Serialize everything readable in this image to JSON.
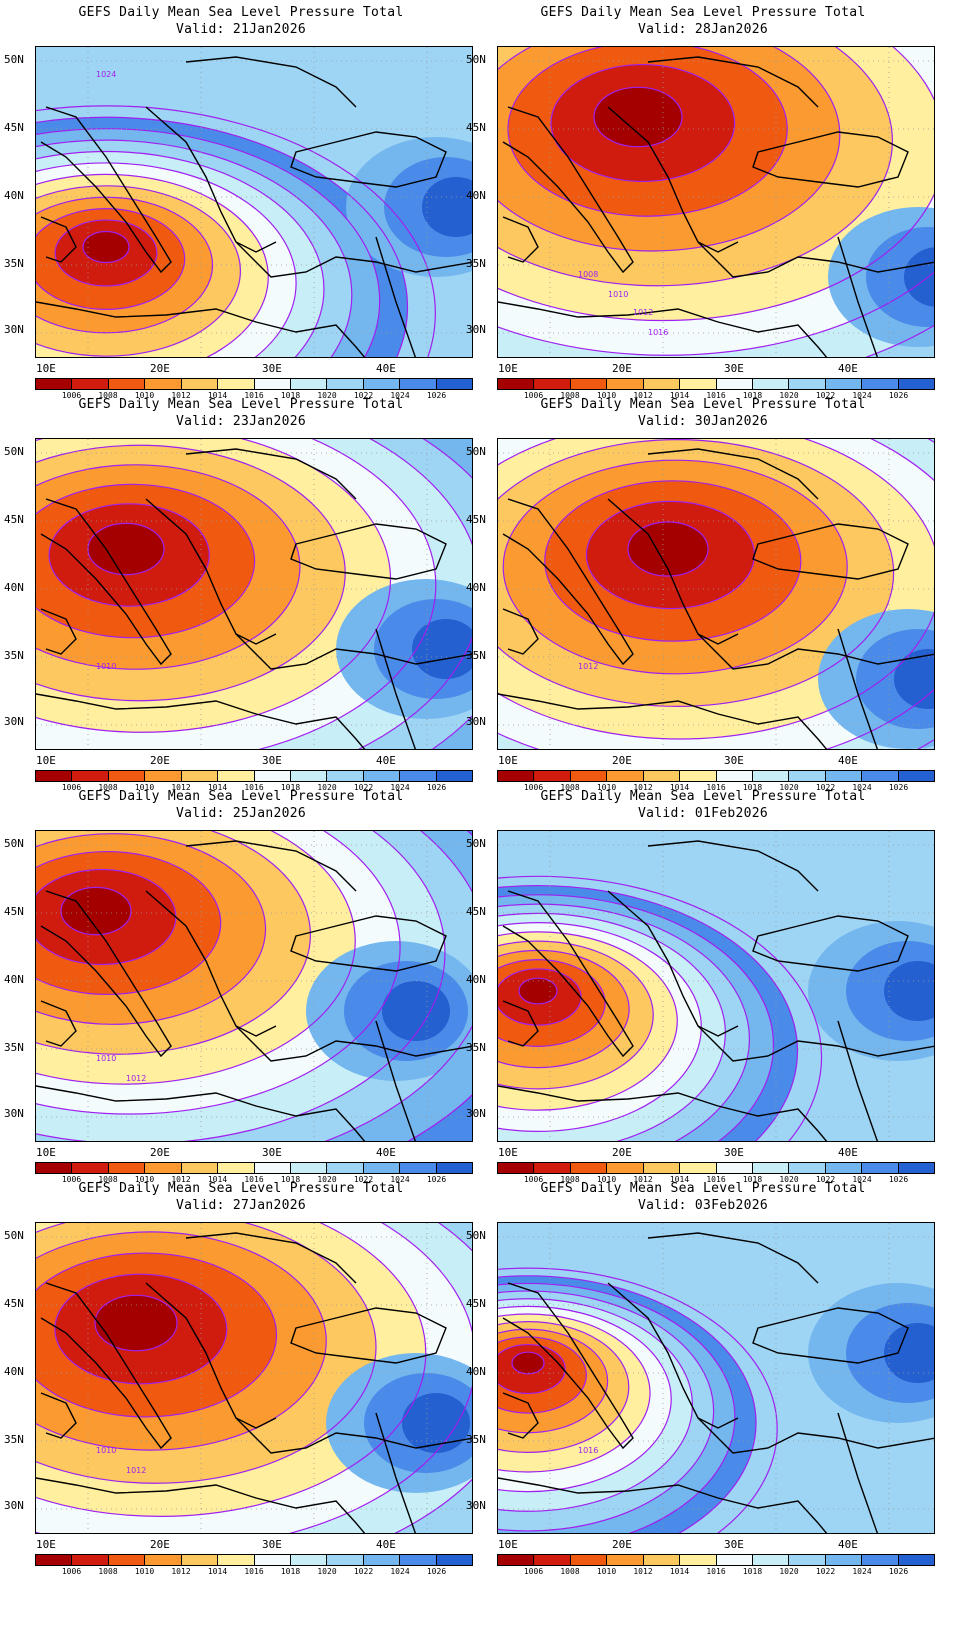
{
  "figure": {
    "panel_title": "GEFS Daily Mean Sea Level Pressure Total",
    "lat_labels": [
      "50N",
      "45N",
      "40N",
      "35N",
      "30N"
    ],
    "lon_labels": [
      "10E",
      "20E",
      "30E",
      "40E"
    ],
    "colorbar_labels": [
      "1006",
      "1008",
      "1010",
      "1012",
      "1014",
      "1016",
      "1018",
      "1020",
      "1022",
      "1024",
      "1026"
    ],
    "colorbar_colors": [
      "#a50000",
      "#d01c0e",
      "#f05a10",
      "#fa9a30",
      "#fdc860",
      "#ffef9e",
      "#f4fbfd",
      "#c8eef8",
      "#9ed4f4",
      "#74b6ee",
      "#4a8ae8",
      "#2460d0"
    ],
    "contour_color": "#a020f0",
    "coast_color": "#000000"
  },
  "panels": [
    {
      "valid": "Valid: 21Jan2026",
      "contour_labels": [
        "1024"
      ]
    },
    {
      "valid": "Valid: 28Jan2026",
      "contour_labels": [
        "1008",
        "1010",
        "1012",
        "1016"
      ]
    },
    {
      "valid": "Valid: 23Jan2026",
      "contour_labels": [
        "1010"
      ]
    },
    {
      "valid": "Valid: 30Jan2026",
      "contour_labels": [
        "1012"
      ]
    },
    {
      "valid": "Valid: 25Jan2026",
      "contour_labels": [
        "1010",
        "1012"
      ]
    },
    {
      "valid": "Valid: 01Feb2026",
      "contour_labels": []
    },
    {
      "valid": "Valid: 27Jan2026",
      "contour_labels": [
        "1010",
        "1012"
      ]
    },
    {
      "valid": "Valid: 03Feb2026",
      "contour_labels": [
        "1016"
      ]
    }
  ]
}
